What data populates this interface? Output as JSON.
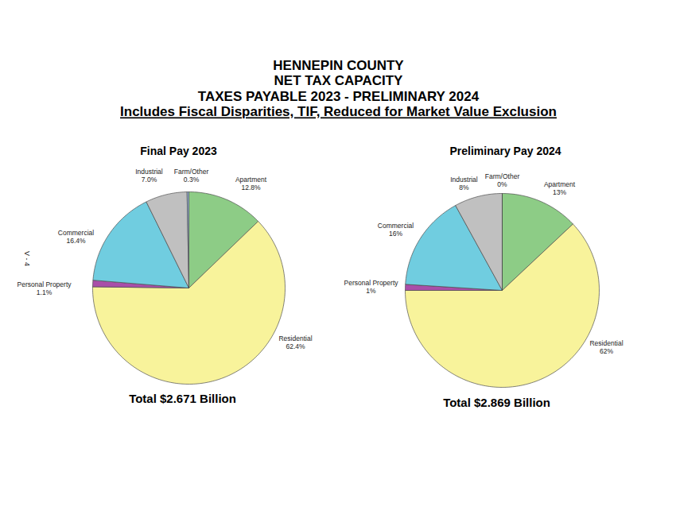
{
  "title": [
    "HENNEPIN COUNTY",
    "NET TAX CAPACITY",
    "TAXES PAYABLE 2023 - PRELIMINARY 2024"
  ],
  "subtitle": "Includes Fiscal Disparities, TIF, Reduced for Market Value Exclusion",
  "page_label": "V - 4",
  "chart_data": [
    {
      "type": "pie",
      "title": "Final Pay 2023",
      "categories": [
        "Apartment",
        "Residential",
        "Personal Property",
        "Commercial",
        "Industrial",
        "Farm/Other"
      ],
      "values": [
        12.8,
        62.4,
        1.1,
        16.4,
        7.0,
        0.3
      ],
      "value_labels": [
        "12.8%",
        "62.4%",
        "1.1%",
        "16.4%",
        "7.0%",
        "0.3%"
      ],
      "colors": [
        "#8dcc86",
        "#f8f39b",
        "#a94fa9",
        "#70cde0",
        "#c0c0c0",
        "#95b3d7"
      ],
      "data_labels": true,
      "caption": "Total $2.671 Billion"
    },
    {
      "type": "pie",
      "title": "Preliminary Pay 2024",
      "categories": [
        "Apartment",
        "Residential",
        "Personal Property",
        "Commercial",
        "Industrial",
        "Farm/Other"
      ],
      "values": [
        13,
        62,
        1,
        16,
        8,
        0
      ],
      "value_labels": [
        "13%",
        "62%",
        "1%",
        "16%",
        "8%",
        "0%"
      ],
      "colors": [
        "#8dcc86",
        "#f8f39b",
        "#a94fa9",
        "#70cde0",
        "#c0c0c0",
        "#95b3d7"
      ],
      "data_labels": true,
      "caption": "Total $2.869 Billion"
    }
  ]
}
